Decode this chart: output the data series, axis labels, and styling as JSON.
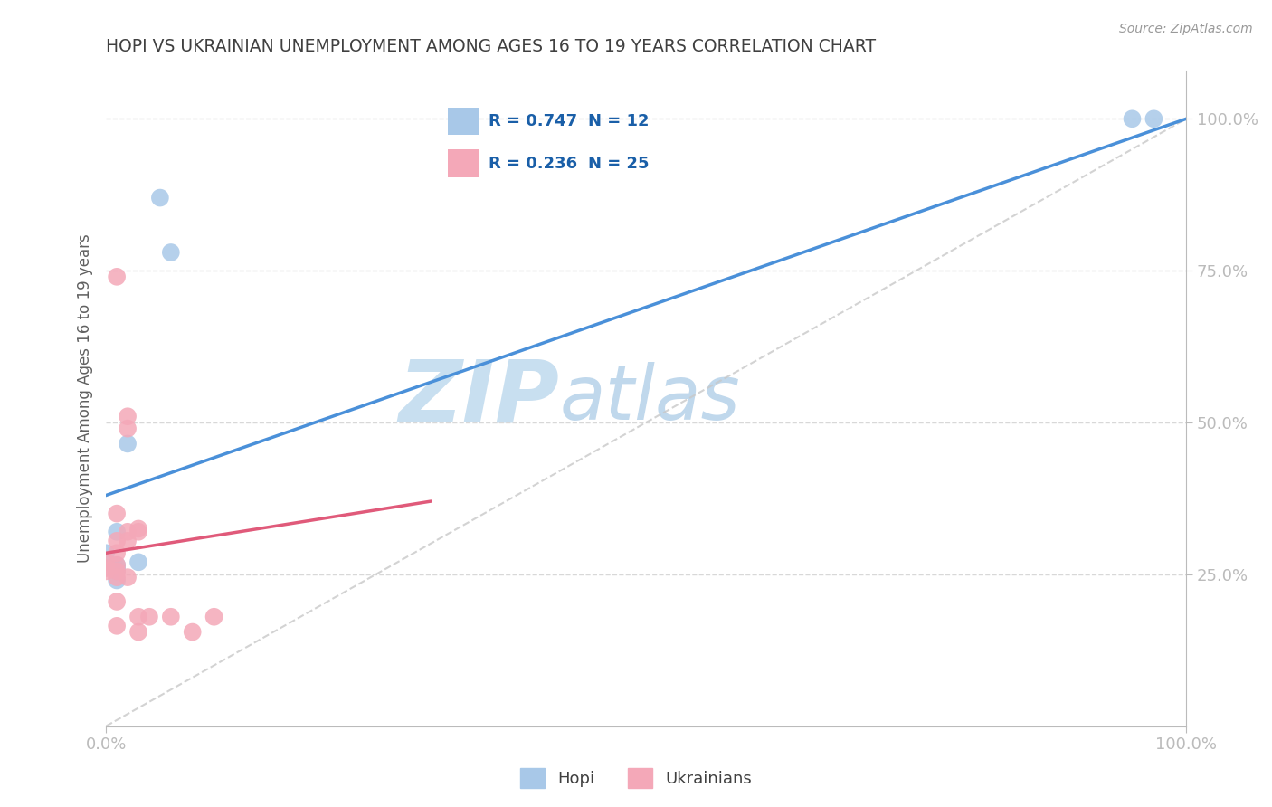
{
  "title": "HOPI VS UKRAINIAN UNEMPLOYMENT AMONG AGES 16 TO 19 YEARS CORRELATION CHART",
  "source": "Source: ZipAtlas.com",
  "ylabel": "Unemployment Among Ages 16 to 19 years",
  "legend_label1": "Hopi",
  "legend_label2": "Ukrainians",
  "legend_R1": "R = 0.747",
  "legend_N1": "N = 12",
  "legend_R2": "R = 0.236",
  "legend_N2": "N = 25",
  "hopi_color": "#a8c8e8",
  "ukrainian_color": "#f4a8b8",
  "hopi_line_color": "#4a90d9",
  "ukrainian_line_color": "#e05a7a",
  "diagonal_color": "#c8c8c8",
  "watermark_zip": "ZIP",
  "watermark_atlas": "atlas",
  "hopi_points": [
    [
      0.0,
      0.285
    ],
    [
      0.01,
      0.32
    ],
    [
      0.01,
      0.265
    ],
    [
      0.01,
      0.26
    ],
    [
      0.01,
      0.255
    ],
    [
      0.01,
      0.24
    ],
    [
      0.02,
      0.465
    ],
    [
      0.03,
      0.27
    ],
    [
      0.05,
      0.87
    ],
    [
      0.06,
      0.78
    ],
    [
      0.95,
      1.0
    ],
    [
      0.97,
      1.0
    ]
  ],
  "ukrainian_points": [
    [
      0.0,
      0.27
    ],
    [
      0.0,
      0.26
    ],
    [
      0.0,
      0.255
    ],
    [
      0.01,
      0.74
    ],
    [
      0.01,
      0.35
    ],
    [
      0.01,
      0.305
    ],
    [
      0.01,
      0.285
    ],
    [
      0.01,
      0.265
    ],
    [
      0.01,
      0.255
    ],
    [
      0.01,
      0.245
    ],
    [
      0.01,
      0.205
    ],
    [
      0.01,
      0.165
    ],
    [
      0.02,
      0.51
    ],
    [
      0.02,
      0.49
    ],
    [
      0.02,
      0.32
    ],
    [
      0.02,
      0.305
    ],
    [
      0.02,
      0.245
    ],
    [
      0.03,
      0.18
    ],
    [
      0.03,
      0.155
    ],
    [
      0.03,
      0.325
    ],
    [
      0.03,
      0.32
    ],
    [
      0.04,
      0.18
    ],
    [
      0.06,
      0.18
    ],
    [
      0.08,
      0.155
    ],
    [
      0.1,
      0.18
    ]
  ],
  "hopi_line": [
    0.0,
    0.38,
    1.0,
    1.0
  ],
  "ukrainian_line": [
    0.0,
    0.285,
    0.3,
    0.37
  ],
  "xlim": [
    0.0,
    1.0
  ],
  "ylim": [
    0.0,
    1.08
  ],
  "background_color": "#ffffff",
  "grid_color": "#d8d8d8",
  "title_color": "#404040",
  "axis_label_color": "#606060",
  "tick_label_color": "#4a90d9",
  "watermark_zip_color": "#c8dff0",
  "watermark_atlas_color": "#c0d8ec",
  "watermark_fontsize": 70
}
